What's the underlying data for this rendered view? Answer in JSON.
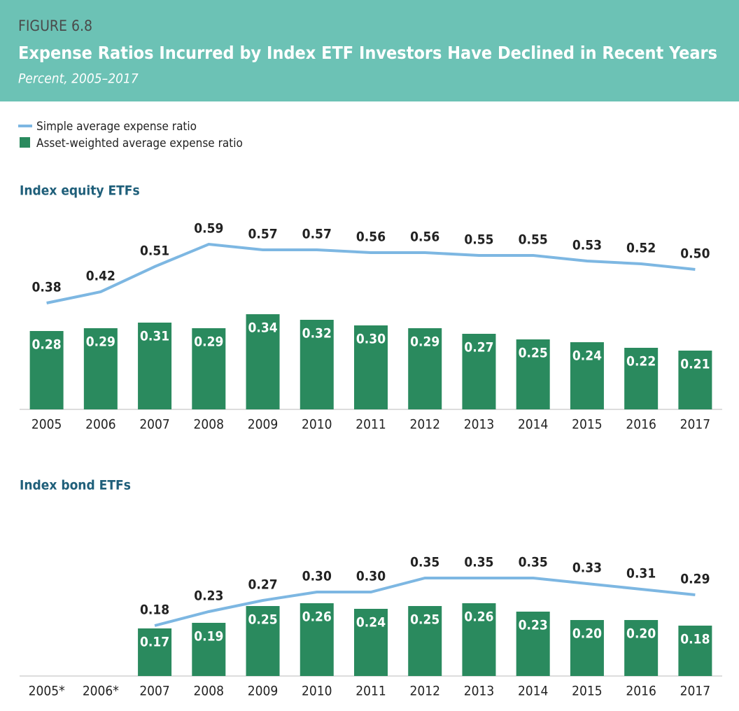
{
  "figure": "FIGURE 6.8",
  "title": "Expense Ratios Incurred by Index ETF Investors Have Declined in Recent Years",
  "subtitle": "Percent, 2005–2017",
  "chart_data": [
    {
      "type": "bar-line",
      "title": "Index equity ETFs",
      "categories": [
        "2005",
        "2006",
        "2007",
        "2008",
        "2009",
        "2010",
        "2011",
        "2012",
        "2013",
        "2014",
        "2015",
        "2016",
        "2017"
      ],
      "ylim": [
        0,
        0.7
      ],
      "series": [
        {
          "name": "Simple average expense ratio",
          "kind": "line",
          "color": "#7db7e2",
          "values": [
            0.38,
            0.42,
            0.51,
            0.59,
            0.57,
            0.57,
            0.56,
            0.56,
            0.55,
            0.55,
            0.53,
            0.52,
            0.5
          ],
          "value_labels": [
            "0.38",
            "0.42",
            "0.51",
            "0.59",
            "0.57",
            "0.57",
            "0.56",
            "0.56",
            "0.55",
            "0.55",
            "0.53",
            "0.52",
            "0.50"
          ]
        },
        {
          "name": "Asset-weighted average expense ratio",
          "kind": "bar",
          "color": "#2a8a5e",
          "values": [
            0.28,
            0.29,
            0.31,
            0.29,
            0.34,
            0.32,
            0.3,
            0.29,
            0.27,
            0.25,
            0.24,
            0.22,
            0.21
          ],
          "value_labels": [
            "0.28",
            "0.29",
            "0.31",
            "0.29",
            "0.34",
            "0.32",
            "0.30",
            "0.29",
            "0.27",
            "0.25",
            "0.24",
            "0.22",
            "0.21"
          ]
        }
      ]
    },
    {
      "type": "bar-line",
      "title": "Index bond ETFs",
      "categories": [
        "2005*",
        "2006*",
        "2007",
        "2008",
        "2009",
        "2010",
        "2011",
        "2012",
        "2013",
        "2014",
        "2015",
        "2016",
        "2017"
      ],
      "ylim": [
        0,
        0.7
      ],
      "series": [
        {
          "name": "Simple average expense ratio",
          "kind": "line",
          "color": "#7db7e2",
          "values": [
            null,
            null,
            0.18,
            0.23,
            0.27,
            0.3,
            0.3,
            0.35,
            0.35,
            0.35,
            0.33,
            0.31,
            0.29
          ],
          "value_labels": [
            null,
            null,
            "0.18",
            "0.23",
            "0.27",
            "0.30",
            "0.30",
            "0.35",
            "0.35",
            "0.35",
            "0.33",
            "0.31",
            "0.29"
          ]
        },
        {
          "name": "Asset-weighted average expense ratio",
          "kind": "bar",
          "color": "#2a8a5e",
          "values": [
            null,
            null,
            0.17,
            0.19,
            0.25,
            0.26,
            0.24,
            0.25,
            0.26,
            0.23,
            0.2,
            0.2,
            0.18
          ],
          "value_labels": [
            null,
            null,
            "0.17",
            "0.19",
            "0.25",
            "0.26",
            "0.24",
            "0.25",
            "0.26",
            "0.23",
            "0.20",
            "0.20",
            "0.18"
          ]
        }
      ]
    }
  ]
}
